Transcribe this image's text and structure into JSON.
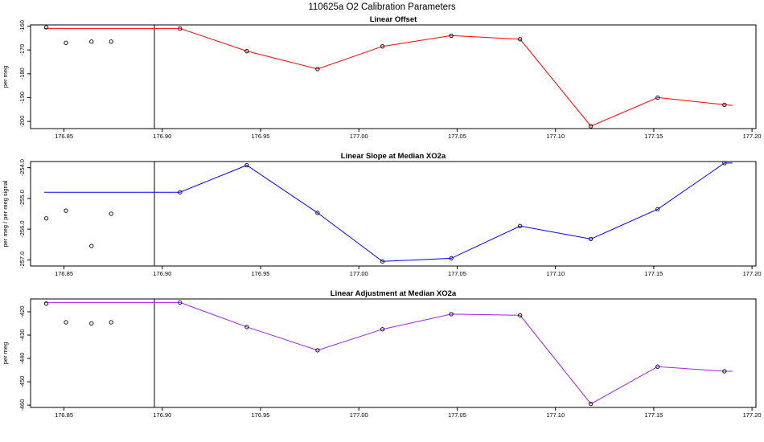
{
  "page_title": "110625a   O2 Calibration Parameters",
  "chart_data": [
    {
      "type": "line",
      "title": "Linear Offset",
      "xlabel": "",
      "ylabel": "per meg",
      "xlim": [
        176.833,
        177.202
      ],
      "ylim": [
        -203,
        -159.5
      ],
      "x_ticks": [
        "176.85",
        "176.90",
        "176.95",
        "177.00",
        "177.05",
        "177.10",
        "177.15",
        "177.20"
      ],
      "y_ticks": [
        "-160",
        "-170",
        "-180",
        "-190",
        "-200"
      ],
      "y_tick_values": [
        -160,
        -170,
        -180,
        -190,
        -200
      ],
      "series_color": "#ff0000",
      "line_x": [
        176.84,
        176.909,
        176.943,
        176.979,
        177.012,
        177.047,
        177.082,
        177.118,
        177.152,
        177.186,
        177.19
      ],
      "line_y": [
        -161.0,
        -161.0,
        -170.5,
        -178.0,
        -168.5,
        -164.0,
        -165.5,
        -202.0,
        -190.0,
        -193.0,
        -193.3
      ],
      "points_x": [
        176.841,
        176.909,
        176.943,
        176.979,
        177.012,
        177.047,
        177.082,
        177.118,
        177.152,
        177.186
      ],
      "points_y": [
        -160.5,
        -161.0,
        -170.5,
        -178.0,
        -168.5,
        -164.0,
        -165.5,
        -202.0,
        -190.0,
        -193.0
      ],
      "open_points_x": [
        176.851,
        176.864,
        176.874
      ],
      "open_points_y": [
        -167.0,
        -166.5,
        -166.5
      ],
      "vline_x": 176.896
    },
    {
      "type": "line",
      "title": "Linear Slope at Median XO2a",
      "xlabel": "",
      "ylabel": "per meg / per meg signal",
      "xlim": [
        176.833,
        177.202
      ],
      "ylim": [
        -257.2,
        -253.8
      ],
      "x_ticks": [
        "176.85",
        "176.90",
        "176.95",
        "177.00",
        "177.05",
        "177.10",
        "177.15",
        "177.20"
      ],
      "y_ticks": [
        "-254.0",
        "-255.0",
        "-256.0",
        "-257.0"
      ],
      "y_tick_values": [
        -254.0,
        -255.0,
        -256.0,
        -257.0
      ],
      "series_color": "#0000ff",
      "line_x": [
        176.84,
        176.909,
        176.943,
        176.979,
        177.012,
        177.047,
        177.082,
        177.118,
        177.152,
        177.186,
        177.19
      ],
      "line_y": [
        -254.8,
        -254.8,
        -253.92,
        -255.47,
        -257.05,
        -256.95,
        -255.9,
        -256.32,
        -255.35,
        -253.85,
        -253.85
      ],
      "points_x": [
        176.909,
        176.943,
        176.979,
        177.012,
        177.047,
        177.082,
        177.118,
        177.152,
        177.186
      ],
      "points_y": [
        -254.8,
        -253.92,
        -255.47,
        -257.05,
        -256.95,
        -255.9,
        -256.32,
        -255.35,
        -253.85
      ],
      "open_points_x": [
        176.841,
        176.851,
        176.864,
        176.874
      ],
      "open_points_y": [
        -255.65,
        -255.4,
        -256.55,
        -255.5
      ],
      "vline_x": 176.896
    },
    {
      "type": "line",
      "title": "Linear Adjustment at Median XO2a",
      "xlabel": "",
      "ylabel": "per meg",
      "xlim": [
        176.833,
        177.202
      ],
      "ylim": [
        -461,
        -414.5
      ],
      "x_ticks": [
        "176.85",
        "176.90",
        "176.95",
        "177.00",
        "177.05",
        "177.10",
        "177.15",
        "177.20"
      ],
      "y_ticks": [
        "-420",
        "-430",
        "-440",
        "-450",
        "-460"
      ],
      "y_tick_values": [
        -420,
        -430,
        -440,
        -450,
        -460
      ],
      "series_color": "#a020f0",
      "line_x": [
        176.84,
        176.909,
        176.943,
        176.979,
        177.012,
        177.047,
        177.082,
        177.118,
        177.152,
        177.186,
        177.19
      ],
      "line_y": [
        -416.0,
        -416.0,
        -426.5,
        -436.5,
        -427.5,
        -421.0,
        -421.5,
        -459.5,
        -443.5,
        -445.5,
        -445.5
      ],
      "points_x": [
        176.909,
        176.943,
        176.979,
        177.012,
        177.047,
        177.082,
        177.118,
        177.152,
        177.186
      ],
      "points_y": [
        -416.0,
        -426.5,
        -436.5,
        -427.5,
        -421.0,
        -421.5,
        -459.5,
        -443.5,
        -445.5
      ],
      "open_points_x": [
        176.841,
        176.851,
        176.864,
        176.874
      ],
      "open_points_y": [
        -416.5,
        -424.5,
        -425.0,
        -424.5
      ],
      "vline_x": 176.896
    }
  ]
}
